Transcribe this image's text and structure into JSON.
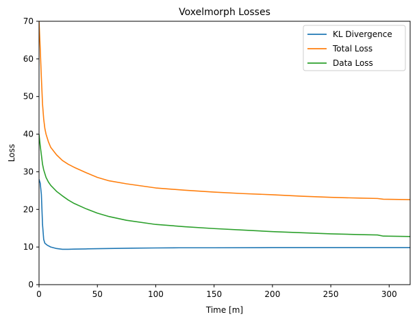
{
  "chart_data": {
    "type": "line",
    "title": "Voxelmorph Losses",
    "xlabel": "Time [m]",
    "ylabel": "Loss",
    "xlim": [
      0,
      318
    ],
    "ylim": [
      0,
      70
    ],
    "xticks": [
      0,
      50,
      100,
      150,
      200,
      250,
      300
    ],
    "yticks": [
      0,
      10,
      20,
      30,
      40,
      50,
      60,
      70
    ],
    "grid": false,
    "legend_position": "top-right",
    "series": [
      {
        "name": "KL Divergence",
        "color": "#1f77b4",
        "x": [
          0,
          1,
          2,
          3,
          4,
          5,
          7,
          10,
          15,
          20,
          25,
          30,
          40,
          50,
          60,
          70,
          80,
          100,
          120,
          150,
          200,
          250,
          300,
          318
        ],
        "y": [
          28,
          27,
          24,
          16,
          12,
          11,
          10.5,
          10,
          9.6,
          9.4,
          9.4,
          9.45,
          9.5,
          9.55,
          9.6,
          9.65,
          9.7,
          9.75,
          9.8,
          9.8,
          9.85,
          9.85,
          9.85,
          9.85
        ]
      },
      {
        "name": "Total Loss",
        "color": "#ff7f0e",
        "x": [
          0,
          1,
          2,
          3,
          4,
          5,
          6,
          8,
          10,
          15,
          20,
          25,
          30,
          40,
          50,
          60,
          75,
          100,
          125,
          150,
          175,
          200,
          225,
          250,
          275,
          290,
          295,
          318
        ],
        "y": [
          70,
          63,
          55,
          48,
          44,
          41.5,
          40,
          38,
          36.5,
          34.5,
          33,
          32,
          31.2,
          29.8,
          28.5,
          27.6,
          26.8,
          25.7,
          25.1,
          24.6,
          24.2,
          23.9,
          23.5,
          23.2,
          23.0,
          22.9,
          22.7,
          22.6
        ]
      },
      {
        "name": "Data Loss",
        "color": "#2ca02c",
        "x": [
          0,
          1,
          2,
          3,
          4,
          5,
          6,
          8,
          10,
          15,
          20,
          25,
          30,
          40,
          50,
          60,
          75,
          100,
          125,
          150,
          175,
          200,
          225,
          250,
          275,
          290,
          295,
          318
        ],
        "y": [
          40,
          37,
          34.5,
          32,
          30.5,
          29.5,
          28.5,
          27.3,
          26.4,
          24.8,
          23.6,
          22.5,
          21.6,
          20.2,
          19.0,
          18.1,
          17.1,
          16.0,
          15.4,
          14.9,
          14.5,
          14.1,
          13.8,
          13.5,
          13.3,
          13.2,
          12.9,
          12.8
        ]
      }
    ]
  }
}
